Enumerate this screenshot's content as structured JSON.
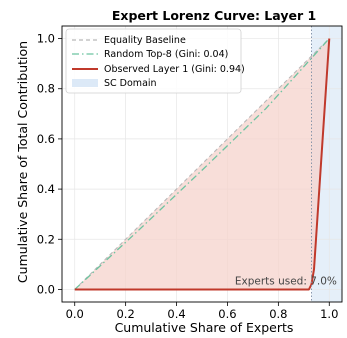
{
  "chart_data": {
    "type": "line",
    "title": "Expert Lorenz Curve: Layer 1",
    "xlabel": "Cumulative Share of Experts",
    "ylabel": "Cumulative Share of Total Contribution",
    "xlim": [
      -0.05,
      1.05
    ],
    "ylim": [
      -0.05,
      1.05
    ],
    "xticks": [
      0.0,
      0.2,
      0.4,
      0.6,
      0.8,
      1.0
    ],
    "yticks": [
      0.0,
      0.2,
      0.4,
      0.6,
      0.8,
      1.0
    ],
    "xtick_labels": [
      "0.0",
      "0.2",
      "0.4",
      "0.6",
      "0.8",
      "1.0"
    ],
    "ytick_labels": [
      "0.0",
      "0.2",
      "0.4",
      "0.6",
      "0.8",
      "1.0"
    ],
    "grid": true,
    "legend_position": "top-left",
    "series": [
      {
        "name": "Equality Baseline",
        "style": "dashed",
        "color": "#b8b8b8",
        "x": [
          0.0,
          1.0
        ],
        "y": [
          0.0,
          1.0
        ]
      },
      {
        "name": "Random Top-8 (Gini: 0.04)",
        "style": "dashdot",
        "color": "#6cc3a0",
        "x": [
          0.0,
          0.25,
          0.5,
          0.75,
          1.0
        ],
        "y": [
          0.0,
          0.235,
          0.475,
          0.72,
          1.0
        ]
      },
      {
        "name": "Observed Layer 1 (Gini: 0.94)",
        "style": "solid",
        "color": "#c0392b",
        "fill_color": "#f6d3cc",
        "x": [
          0.0,
          0.92,
          0.93,
          0.94,
          1.0
        ],
        "y": [
          0.0,
          0.0,
          0.02,
          0.08,
          1.0
        ]
      }
    ],
    "sc_domain": {
      "name": "SC Domain",
      "color": "#dce9f7",
      "x_range": [
        0.93,
        1.05
      ]
    },
    "vline": {
      "x": 0.93,
      "color": "#7f8fa6",
      "style": "dotted"
    },
    "annotation": {
      "text": "Experts used: 7.0%",
      "x": 1.03,
      "y": 0.02
    }
  }
}
